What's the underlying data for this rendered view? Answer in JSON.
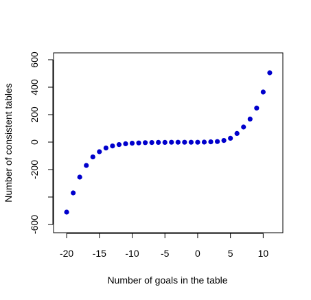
{
  "chart_data": {
    "type": "scatter",
    "xlabel": "Number of goals in the table",
    "ylabel": "Number of consistent tables",
    "xlim": [
      -22,
      13
    ],
    "ylim": [
      -660,
      650
    ],
    "x_ticks": [
      -20,
      -15,
      -10,
      -5,
      0,
      5,
      10
    ],
    "y_ticks": [
      -600,
      -400,
      -200,
      0,
      200,
      400,
      600
    ],
    "y_tick_labels": [
      "-600",
      "",
      "-200",
      "0",
      "200",
      "400",
      "600"
    ],
    "grid": false,
    "legend": "none",
    "point_color": "#0000cc",
    "series": [
      {
        "x": [
          -20,
          -19,
          -18,
          -17,
          -16,
          -15,
          -14,
          -13,
          -12,
          -11,
          -10,
          -9,
          -8,
          -7,
          -6,
          -5,
          -4,
          -3,
          -2,
          -1,
          0,
          1,
          2,
          3,
          4,
          5,
          6,
          7,
          8,
          9,
          10,
          11
        ],
        "y": [
          -510,
          -370,
          -255,
          -170,
          -108,
          -70,
          -43,
          -28,
          -18,
          -12,
          -8,
          -6,
          -4,
          -3,
          -2,
          -2,
          -1,
          -1,
          -1,
          -1,
          -1,
          0,
          2,
          4,
          12,
          28,
          63,
          110,
          168,
          248,
          365,
          505
        ]
      }
    ]
  }
}
